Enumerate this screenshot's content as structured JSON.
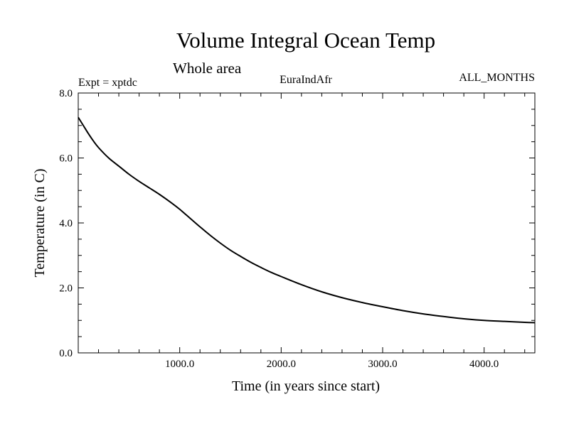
{
  "chart_data": {
    "type": "line",
    "title": "Volume Integral Ocean Temp",
    "subtitle": "Whole area",
    "annotation_left": "Expt = xptdc",
    "annotation_center": "EuraIndAfr",
    "annotation_right": "ALL_MONTHS",
    "xlabel": "Time (in years since start)",
    "ylabel": "Temperature (in C)",
    "xlim": [
      0,
      4500
    ],
    "ylim": [
      0,
      8
    ],
    "x_major_ticks": [
      1000,
      2000,
      3000,
      4000
    ],
    "x_tick_labels": [
      "1000.0",
      "2000.0",
      "3000.0",
      "4000.0"
    ],
    "y_major_ticks": [
      0,
      2,
      4,
      6,
      8
    ],
    "y_tick_labels": [
      "0.0",
      "2.0",
      "4.0",
      "6.0",
      "8.0"
    ],
    "grid": false,
    "line_color": "#000000",
    "series": [
      {
        "x": [
          0,
          50,
          100,
          150,
          200,
          300,
          400,
          500,
          600,
          700,
          800,
          900,
          1000,
          1100,
          1200,
          1300,
          1400,
          1500,
          1600,
          1700,
          1800,
          1900,
          2000,
          2200,
          2400,
          2600,
          2800,
          3000,
          3200,
          3400,
          3600,
          3800,
          4000,
          4200,
          4400,
          4500
        ],
        "y": [
          7.25,
          7.0,
          6.75,
          6.52,
          6.32,
          6.0,
          5.75,
          5.5,
          5.28,
          5.08,
          4.88,
          4.66,
          4.42,
          4.15,
          3.88,
          3.62,
          3.38,
          3.16,
          2.97,
          2.79,
          2.63,
          2.48,
          2.35,
          2.1,
          1.88,
          1.7,
          1.55,
          1.42,
          1.3,
          1.2,
          1.12,
          1.05,
          1.0,
          0.97,
          0.94,
          0.93
        ]
      }
    ]
  }
}
